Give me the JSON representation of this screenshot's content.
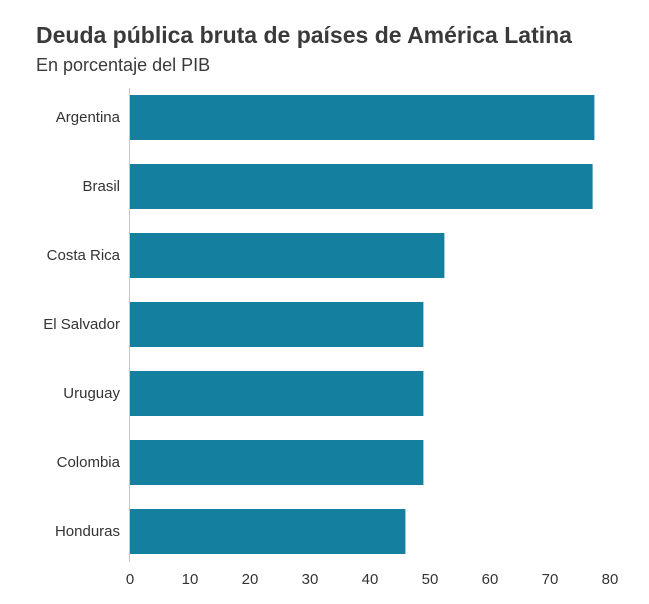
{
  "chart": {
    "title": "Deuda pública bruta de países de América Latina",
    "subtitle": "En porcentaje del PIB"
  },
  "colors": {
    "bar": "#147f9f",
    "axis_line": "#c8c8c8",
    "text": "#333333"
  },
  "chart_data": {
    "type": "bar",
    "orientation": "horizontal",
    "title": "Deuda pública bruta de países de América Latina",
    "subtitle": "En porcentaje del PIB",
    "categories": [
      "Argentina",
      "Brasil",
      "Costa Rica",
      "El Salvador",
      "Uruguay",
      "Colombia",
      "Honduras"
    ],
    "values": [
      77.4,
      77.1,
      52.4,
      48.9,
      48.9,
      48.9,
      45.9
    ],
    "xlabel": "",
    "ylabel": "",
    "xlim": [
      0,
      80
    ],
    "xticks": [
      0,
      10,
      20,
      30,
      40,
      50,
      60,
      70,
      80
    ],
    "grid": false,
    "legend": "none"
  }
}
